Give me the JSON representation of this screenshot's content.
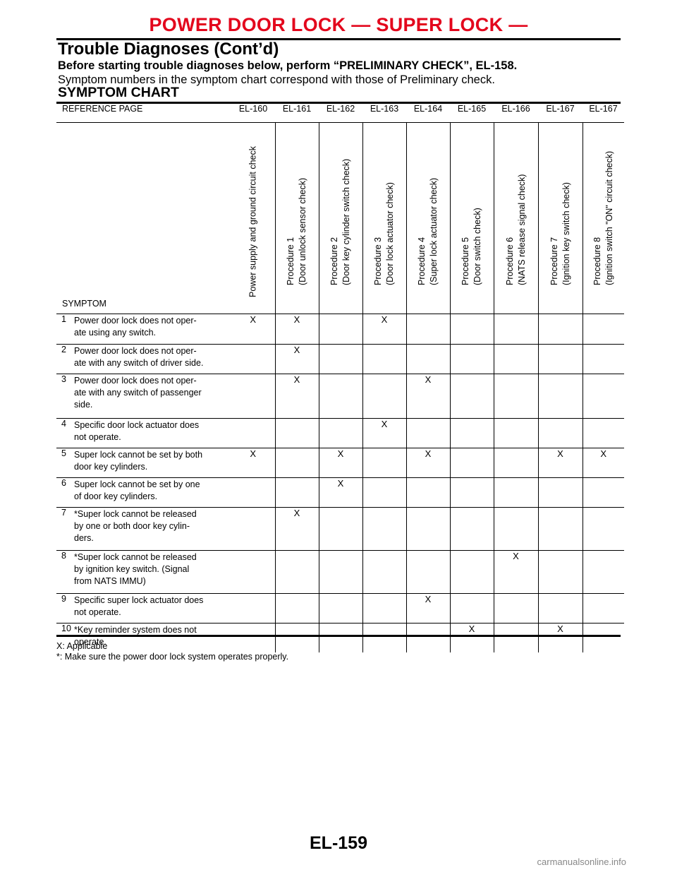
{
  "header": {
    "title": "POWER DOOR LOCK — SUPER LOCK —",
    "subtitle": "Trouble Diagnoses (Cont’d)"
  },
  "intro": {
    "line1": "Before starting trouble diagnoses below, perform “PRELIMINARY CHECK”, EL-158.",
    "line2": "Symptom numbers in the symptom chart correspond with those of Preliminary check."
  },
  "chart_title": "SYMPTOM CHART",
  "table": {
    "ref_label": "REFERENCE PAGE",
    "symptom_label": "SYMPTOM",
    "ref_pages": [
      "EL-160",
      "EL-161",
      "EL-162",
      "EL-163",
      "EL-164",
      "EL-165",
      "EL-166",
      "EL-167",
      "EL-167"
    ],
    "procedures": [
      {
        "line1": "Power supply and ground circuit check",
        "line2": ""
      },
      {
        "line1": "Procedure 1",
        "line2": "(Door unlock sensor check)"
      },
      {
        "line1": "Procedure 2",
        "line2": "(Door key cylinder switch check)"
      },
      {
        "line1": "Procedure 3",
        "line2": "(Door lock actuator check)"
      },
      {
        "line1": "Procedure 4",
        "line2": "(Super lock actuator check)"
      },
      {
        "line1": "Procedure 5",
        "line2": "(Door switch check)"
      },
      {
        "line1": "Procedure 6",
        "line2": "(NATS release signal check)"
      },
      {
        "line1": "Procedure 7",
        "line2": "(Ignition key switch check)"
      },
      {
        "line1": "Procedure 8",
        "line2": "(Ignition switch \"ON\" circuit check)"
      }
    ],
    "rows": [
      {
        "num": "1",
        "symptom": "Power door lock does not oper-\nate using any switch.",
        "marks": [
          "X",
          "X",
          "",
          "X",
          "",
          "",
          "",
          "",
          ""
        ]
      },
      {
        "num": "2",
        "symptom": "Power door lock does not oper-\nate with any switch of driver side.",
        "marks": [
          "",
          "X",
          "",
          "",
          "",
          "",
          "",
          "",
          ""
        ]
      },
      {
        "num": "3",
        "symptom": "Power door lock does not oper-\nate with any switch of passenger\nside.",
        "marks": [
          "",
          "X",
          "",
          "",
          "X",
          "",
          "",
          "",
          ""
        ]
      },
      {
        "num": "4",
        "symptom": "Specific door lock actuator does\nnot operate.",
        "marks": [
          "",
          "",
          "",
          "X",
          "",
          "",
          "",
          "",
          ""
        ]
      },
      {
        "num": "5",
        "symptom": "Super lock cannot be set by both\ndoor key cylinders.",
        "marks": [
          "X",
          "",
          "X",
          "",
          "X",
          "",
          "",
          "X",
          "X"
        ]
      },
      {
        "num": "6",
        "symptom": "Super lock cannot be set by one\nof door key cylinders.",
        "marks": [
          "",
          "",
          "X",
          "",
          "",
          "",
          "",
          "",
          ""
        ]
      },
      {
        "num": "7",
        "symptom": "*Super lock cannot be released\nby one or both door key cylin-\nders.",
        "marks": [
          "",
          "X",
          "",
          "",
          "",
          "",
          "",
          "",
          ""
        ]
      },
      {
        "num": "8",
        "symptom": "*Super lock cannot be released\nby ignition key switch. (Signal\nfrom NATS IMMU)",
        "marks": [
          "",
          "",
          "",
          "",
          "",
          "",
          "X",
          "",
          ""
        ]
      },
      {
        "num": "9",
        "symptom": "Specific super lock actuator does\nnot operate.",
        "marks": [
          "",
          "",
          "",
          "",
          "X",
          "",
          "",
          "",
          ""
        ]
      },
      {
        "num": "10",
        "symptom": "*Key reminder system does not\noperate.",
        "marks": [
          "",
          "",
          "",
          "",
          "",
          "X",
          "",
          "X",
          ""
        ]
      }
    ]
  },
  "notes": {
    "applicable": "X: Applicable",
    "star": "*: Make sure the power door lock system operates properly."
  },
  "page_number": "EL-159",
  "watermark": "carmanualsonline.info"
}
